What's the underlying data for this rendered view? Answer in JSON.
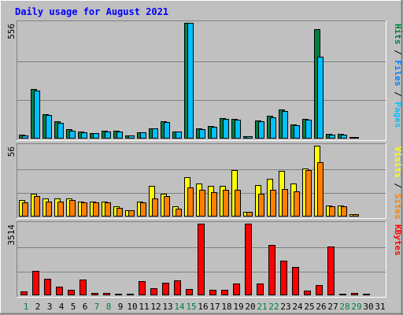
{
  "chart_data": {
    "type": "bar",
    "title": "Daily usage for August 2021",
    "categories": [
      "1",
      "2",
      "3",
      "4",
      "5",
      "6",
      "7",
      "8",
      "9",
      "10",
      "11",
      "12",
      "13",
      "14",
      "15",
      "16",
      "17",
      "18",
      "19",
      "20",
      "21",
      "22",
      "23",
      "24",
      "25",
      "26",
      "27",
      "28",
      "29",
      "30",
      "31"
    ],
    "weekend_days": [
      "1",
      "7",
      "8",
      "14",
      "15",
      "21",
      "22",
      "28",
      "29"
    ],
    "panels": [
      {
        "id": "pages-files-hits",
        "max_label": "556",
        "ymax": 556,
        "side_labels": [
          "Pages",
          "Files",
          "Hits"
        ],
        "series": [
          {
            "name": "Hits",
            "color": "#008040",
            "values": [
              20,
              240,
              118,
              82,
              46,
              34,
              26,
              36,
              36,
              17,
              32,
              51,
              82,
              34,
              556,
              50,
              62,
              100,
              95,
              12,
              88,
              108,
              140,
              68,
              95,
              525,
              21,
              21,
              2,
              0,
              0
            ]
          },
          {
            "name": "Files",
            "color": "#00c0ff",
            "values": [
              17,
              232,
              112,
              75,
              38,
              30,
              25,
              33,
              33,
              15,
              30,
              48,
              80,
              34,
              556,
              46,
              58,
              94,
              90,
              10,
              84,
              103,
              134,
              65,
              92,
              393,
              20,
              20,
              1,
              0,
              0
            ]
          },
          {
            "name": "Pages",
            "color": "#00c0ff",
            "values": [
              0,
              0,
              0,
              0,
              0,
              0,
              0,
              0,
              0,
              0,
              0,
              0,
              0,
              0,
              0,
              0,
              0,
              0,
              0,
              0,
              0,
              0,
              0,
              0,
              0,
              0,
              0,
              0,
              0,
              0,
              0
            ]
          }
        ]
      },
      {
        "id": "visits-sites",
        "max_label": "56",
        "ymax": 56,
        "side_labels": [
          "Sites",
          "Visits"
        ],
        "series": [
          {
            "name": "Visits",
            "color": "#ffff00",
            "values": [
              13,
              18,
              14,
              14,
              14,
              12,
              12,
              12,
              8,
              5,
              12,
              24,
              18,
              8,
              31,
              26,
              24,
              24,
              37,
              4,
              25,
              30,
              36,
              26,
              38,
              56,
              9,
              9,
              2,
              0,
              0
            ]
          },
          {
            "name": "Sites",
            "color": "#ff8000",
            "values": [
              11,
              16,
              12,
              12,
              13,
              11,
              11,
              11,
              7,
              5,
              11,
              14,
              16,
              6,
              23,
              21,
              19,
              21,
              21,
              4,
              18,
              21,
              22,
              20,
              37,
              43,
              8,
              8,
              2,
              0,
              0
            ]
          }
        ]
      },
      {
        "id": "kbytes",
        "max_label": "3514",
        "ymax": 3514,
        "side_labels": [
          "KBytes"
        ],
        "series": [
          {
            "name": "KBytes",
            "color": "#ff0000",
            "values": [
              200,
              1200,
              820,
              420,
              280,
              780,
              120,
              120,
              70,
              40,
              700,
              360,
              600,
              740,
              300,
              3514,
              260,
              280,
              580,
              3514,
              580,
              2480,
              1700,
              1380,
              240,
              520,
              2400,
              40,
              120,
              90,
              0
            ]
          }
        ]
      }
    ]
  }
}
